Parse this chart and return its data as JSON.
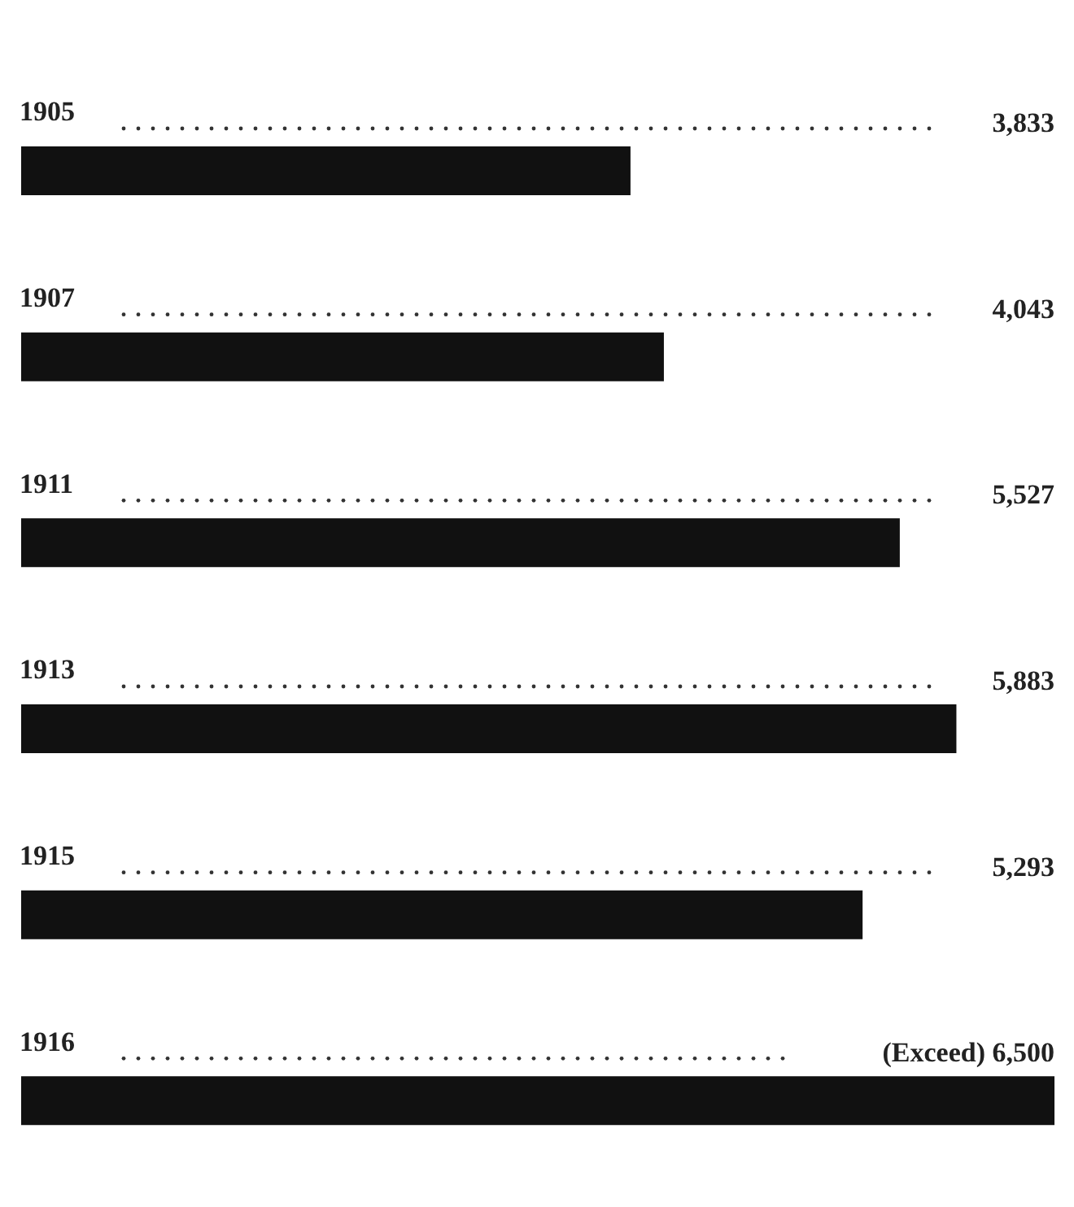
{
  "chart_data": {
    "type": "bar",
    "orientation": "horizontal",
    "categories": [
      "1905",
      "1907",
      "1911",
      "1913",
      "1915",
      "1916"
    ],
    "values": [
      3833,
      4043,
      5527,
      5883,
      5293,
      6500
    ],
    "value_labels": [
      "3,833",
      "4,043",
      "5,527",
      "5,883",
      "5,293",
      "(Exceed) 6,500"
    ],
    "color": "#111111",
    "xlim": [
      0,
      6500
    ],
    "tick_labels": "y",
    "grid": false
  }
}
